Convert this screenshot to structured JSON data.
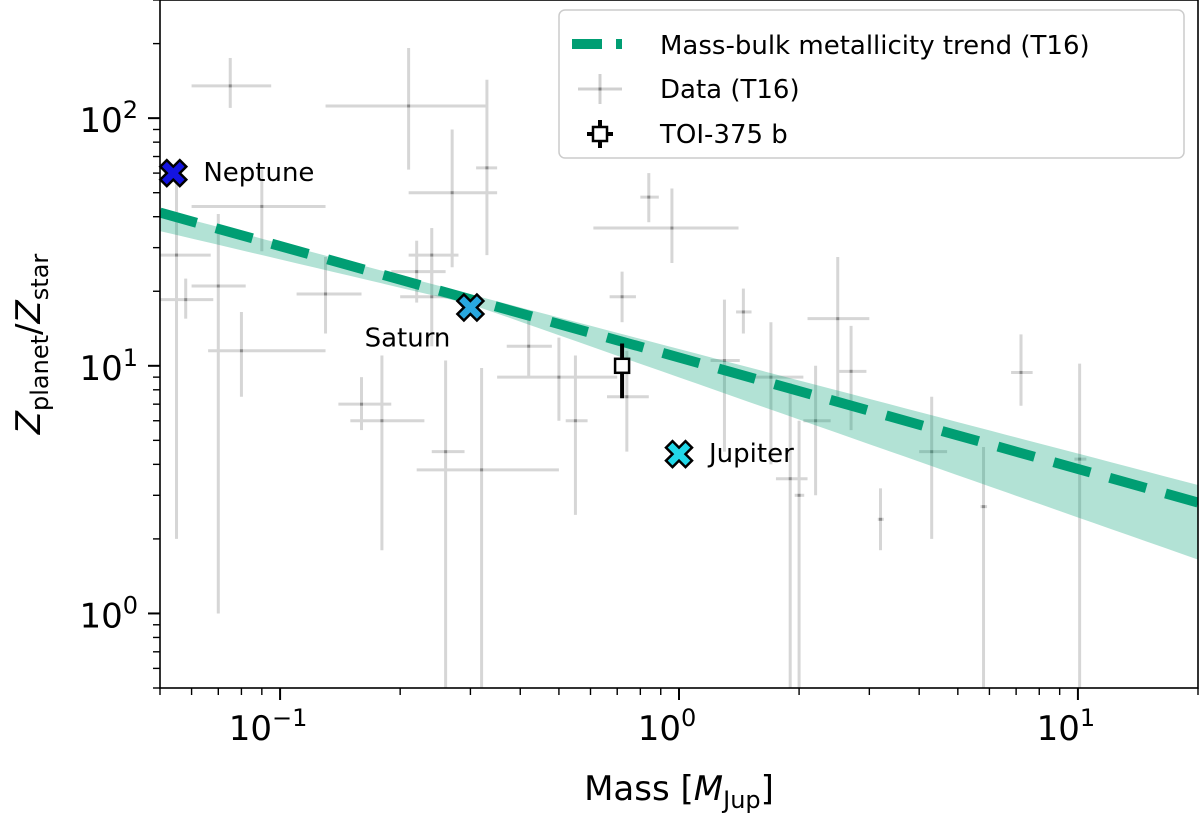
{
  "chart_data": {
    "type": "scatter",
    "xlabel_main": "Mass [",
    "xlabel_sym": "M",
    "xlabel_sub": "Jup",
    "xlabel_close": "]",
    "ylabel_z1": "Z",
    "ylabel_sub1": "planet",
    "ylabel_slash": "/",
    "ylabel_z2": "Z",
    "ylabel_sub2": "star",
    "x_scale": "log",
    "y_scale": "log",
    "xlim": [
      0.05,
      20
    ],
    "ylim": [
      0.5,
      300
    ],
    "x_ticks": [
      {
        "value": 0.1,
        "base": "10",
        "exp": "−1"
      },
      {
        "value": 1,
        "base": "10",
        "exp": "0"
      },
      {
        "value": 10,
        "base": "10",
        "exp": "1"
      }
    ],
    "y_ticks": [
      {
        "value": 1,
        "base": "10",
        "exp": "0"
      },
      {
        "value": 10,
        "base": "10",
        "exp": "1"
      },
      {
        "value": 100,
        "base": "10",
        "exp": "2"
      }
    ],
    "legend_position": "top-right",
    "legend": [
      {
        "label": "Mass-bulk metallicity trend (T16)",
        "kind": "dashed-line"
      },
      {
        "label": "Data (T16)",
        "kind": "errorbar-gray"
      },
      {
        "label": "TOI-375 b",
        "kind": "errorbar-open"
      }
    ],
    "trend": {
      "amplitude": 10.8,
      "slope": -0.45,
      "band_lower_at_20": 1.65,
      "band_upper_at_20": 3.3,
      "band_at_005": [
        35,
        42
      ],
      "color": "#009E73"
    },
    "data_points": [
      {
        "x": 0.055,
        "y": 28,
        "xerr": [
          0.01,
          0.012
        ],
        "yerr": [
          26,
          30
        ]
      },
      {
        "x": 0.058,
        "y": 18.5,
        "xerr": [
          0.008,
          0.01
        ],
        "yerr": [
          3,
          4
        ]
      },
      {
        "x": 0.07,
        "y": 21,
        "xerr": [
          0.01,
          0.012
        ],
        "yerr": [
          20,
          20
        ]
      },
      {
        "x": 0.075,
        "y": 135,
        "xerr": [
          0.015,
          0.02
        ],
        "yerr": [
          25,
          40
        ]
      },
      {
        "x": 0.08,
        "y": 11.5,
        "xerr": [
          0.014,
          0.05
        ],
        "yerr": [
          4,
          5
        ]
      },
      {
        "x": 0.09,
        "y": 44,
        "xerr": [
          0.03,
          0.04
        ],
        "yerr": [
          15,
          18
        ]
      },
      {
        "x": 0.13,
        "y": 19.5,
        "xerr": [
          0.02,
          0.03
        ],
        "yerr": [
          6,
          8
        ]
      },
      {
        "x": 0.16,
        "y": 7,
        "xerr": [
          0.02,
          0.03
        ],
        "yerr": [
          1.5,
          2
        ]
      },
      {
        "x": 0.18,
        "y": 6,
        "xerr": [
          0.03,
          0.05
        ],
        "yerr": [
          4.2,
          5
        ]
      },
      {
        "x": 0.21,
        "y": 112,
        "xerr": [
          0.08,
          0.12
        ],
        "yerr": [
          50,
          80
        ]
      },
      {
        "x": 0.22,
        "y": 24,
        "xerr": [
          0.03,
          0.04
        ],
        "yerr": [
          6,
          8
        ]
      },
      {
        "x": 0.24,
        "y": 28,
        "xerr": [
          0.03,
          0.04
        ],
        "yerr": [
          7,
          8
        ]
      },
      {
        "x": 0.24,
        "y": 19,
        "xerr": [
          0.04,
          0.05
        ],
        "yerr": [
          7,
          8
        ]
      },
      {
        "x": 0.26,
        "y": 4.5,
        "xerr": [
          0.02,
          0.03
        ],
        "yerr": [
          4.0,
          6
        ]
      },
      {
        "x": 0.27,
        "y": 50,
        "xerr": [
          0.06,
          0.08
        ],
        "yerr": [
          25,
          40
        ]
      },
      {
        "x": 0.32,
        "y": 3.8,
        "xerr": [
          0.1,
          0.18
        ],
        "yerr": [
          3.3,
          6
        ]
      },
      {
        "x": 0.33,
        "y": 63,
        "xerr": [
          0.02,
          0.02
        ],
        "yerr": [
          35,
          80
        ]
      },
      {
        "x": 0.42,
        "y": 12,
        "xerr": [
          0.05,
          0.06
        ],
        "yerr": [
          3,
          4
        ]
      },
      {
        "x": 0.5,
        "y": 9,
        "xerr": [
          0.15,
          0.2
        ],
        "yerr": [
          3,
          4
        ]
      },
      {
        "x": 0.55,
        "y": 6,
        "xerr": [
          0.03,
          0.04
        ],
        "yerr": [
          3.5,
          5
        ]
      },
      {
        "x": 0.72,
        "y": 19,
        "xerr": [
          0.05,
          0.06
        ],
        "yerr": [
          4,
          5
        ]
      },
      {
        "x": 0.74,
        "y": 7.5,
        "xerr": [
          0.08,
          0.1
        ],
        "yerr": [
          3,
          4
        ]
      },
      {
        "x": 0.84,
        "y": 48,
        "xerr": [
          0.04,
          0.05
        ],
        "yerr": [
          10,
          12
        ]
      },
      {
        "x": 0.96,
        "y": 36,
        "xerr": [
          0.35,
          0.45
        ],
        "yerr": [
          10,
          16
        ]
      },
      {
        "x": 1.3,
        "y": 10.5,
        "xerr": [
          0.1,
          0.12
        ],
        "yerr": [
          6,
          8
        ]
      },
      {
        "x": 1.45,
        "y": 16.5,
        "xerr": [
          0.06,
          0.07
        ],
        "yerr": [
          3,
          4
        ]
      },
      {
        "x": 1.7,
        "y": 9,
        "xerr": [
          0.25,
          0.35
        ],
        "yerr": [
          5,
          6
        ]
      },
      {
        "x": 1.9,
        "y": 3.5,
        "xerr": [
          0.15,
          0.2
        ],
        "yerr": [
          3.2,
          5
        ]
      },
      {
        "x": 2.0,
        "y": 3.0,
        "xerr": [
          0.05,
          0.06
        ],
        "yerr": [
          2.8,
          3
        ]
      },
      {
        "x": 2.2,
        "y": 6,
        "xerr": [
          0.15,
          0.2
        ],
        "yerr": [
          3,
          4
        ]
      },
      {
        "x": 2.5,
        "y": 15.5,
        "xerr": [
          0.4,
          0.5
        ],
        "yerr": [
          8,
          12
        ]
      },
      {
        "x": 2.7,
        "y": 9.5,
        "xerr": [
          0.2,
          0.25
        ],
        "yerr": [
          4,
          5
        ]
      },
      {
        "x": 3.2,
        "y": 2.4,
        "xerr": [
          0.05,
          0.06
        ],
        "yerr": [
          0.6,
          0.8
        ]
      },
      {
        "x": 4.3,
        "y": 4.5,
        "xerr": [
          0.3,
          0.4
        ],
        "yerr": [
          2.5,
          3
        ]
      },
      {
        "x": 5.8,
        "y": 2.7,
        "xerr": [
          0.1,
          0.12
        ],
        "yerr": [
          2.4,
          2
        ]
      },
      {
        "x": 7.2,
        "y": 9.4,
        "xerr": [
          0.4,
          0.5
        ],
        "yerr": [
          2.5,
          4
        ]
      },
      {
        "x": 10.1,
        "y": 4.2,
        "xerr": [
          0.3,
          0.4
        ],
        "yerr": [
          3.7,
          6
        ]
      }
    ],
    "toi": {
      "label": "TOI-375 b",
      "x": 0.72,
      "y": 10,
      "xerr": [
        0.02,
        0.02
      ],
      "yerr": [
        2.6,
        2.3
      ]
    },
    "solar_planets": [
      {
        "name": "Neptune",
        "x": 0.054,
        "y": 60,
        "color": "#1414e0",
        "label_side": "right"
      },
      {
        "name": "Saturn",
        "x": 0.3,
        "y": 17.2,
        "color": "#29a8e0",
        "label_side": "below-left"
      },
      {
        "name": "Jupiter",
        "x": 1.0,
        "y": 4.4,
        "color": "#22d8e8",
        "label_side": "right"
      }
    ]
  }
}
